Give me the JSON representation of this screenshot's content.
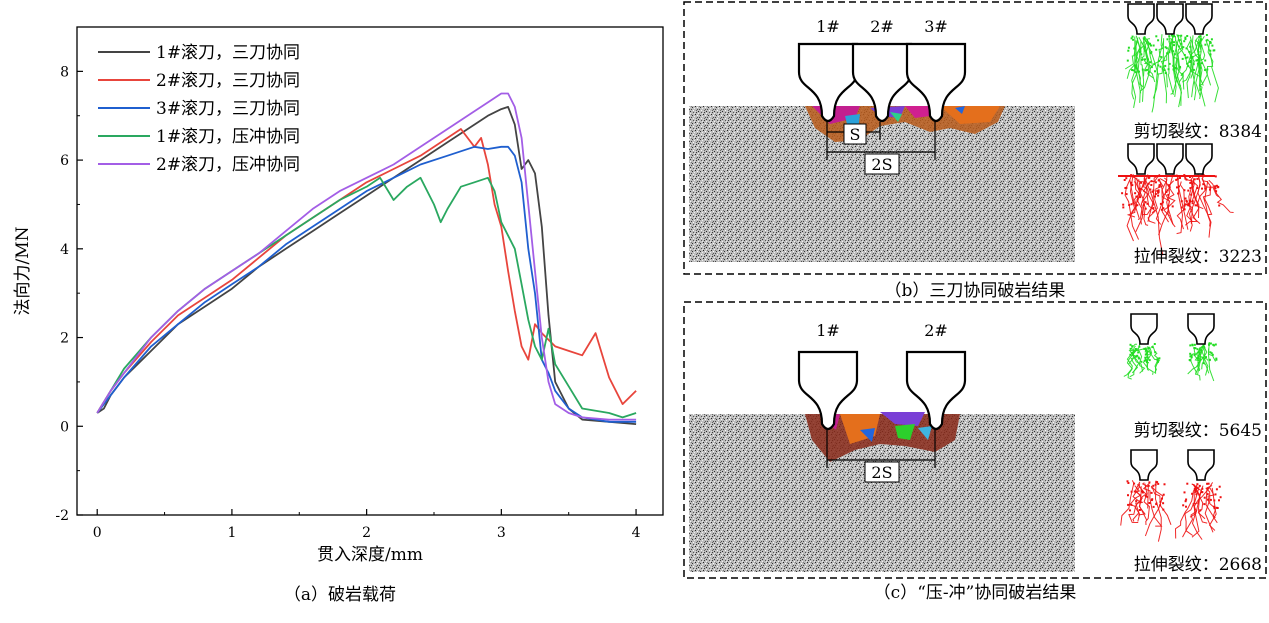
{
  "chart_data": {
    "type": "line",
    "xlabel": "贯入深度/mm",
    "ylabel": "法向力/MN",
    "xlim": [
      -0.15,
      4.2
    ],
    "ylim": [
      -2,
      9
    ],
    "xticks": [
      0,
      1,
      2,
      3,
      4
    ],
    "yticks": [
      -2,
      0,
      2,
      4,
      6,
      8
    ],
    "grid": false,
    "legend_position": "top-left",
    "caption": "（a）破岩载荷",
    "series": [
      {
        "name": "1#滚刀，三刀协同",
        "color": "#444444",
        "x": [
          0,
          0.05,
          0.1,
          0.2,
          0.3,
          0.4,
          0.5,
          0.6,
          0.8,
          1.0,
          1.2,
          1.4,
          1.6,
          1.8,
          2.0,
          2.2,
          2.4,
          2.6,
          2.8,
          2.9,
          3.0,
          3.05,
          3.1,
          3.15,
          3.2,
          3.25,
          3.3,
          3.35,
          3.4,
          3.5,
          3.6,
          3.8,
          4.0
        ],
        "y": [
          0.3,
          0.4,
          0.7,
          1.1,
          1.4,
          1.7,
          2.0,
          2.3,
          2.7,
          3.1,
          3.6,
          4.0,
          4.4,
          4.8,
          5.2,
          5.6,
          6.0,
          6.4,
          6.8,
          7.0,
          7.15,
          7.2,
          6.8,
          5.8,
          6.0,
          5.7,
          4.5,
          2.5,
          1.0,
          0.4,
          0.15,
          0.1,
          0.05
        ]
      },
      {
        "name": "2#滚刀，三刀协同",
        "color": "#e8453c",
        "x": [
          0,
          0.1,
          0.2,
          0.4,
          0.6,
          0.8,
          1.0,
          1.2,
          1.4,
          1.6,
          1.8,
          2.0,
          2.2,
          2.4,
          2.6,
          2.7,
          2.8,
          2.85,
          2.9,
          2.95,
          3.0,
          3.05,
          3.1,
          3.15,
          3.2,
          3.25,
          3.3,
          3.4,
          3.5,
          3.6,
          3.7,
          3.8,
          3.9,
          4.0
        ],
        "y": [
          0.3,
          0.8,
          1.2,
          1.9,
          2.5,
          2.9,
          3.3,
          3.8,
          4.3,
          4.7,
          5.1,
          5.5,
          5.8,
          6.1,
          6.5,
          6.7,
          6.3,
          6.5,
          5.9,
          5.0,
          4.5,
          3.5,
          2.6,
          1.8,
          1.5,
          2.3,
          2.1,
          1.8,
          1.7,
          1.6,
          2.1,
          1.1,
          0.5,
          0.8
        ]
      },
      {
        "name": "3#滚刀，三刀协同",
        "color": "#1f5fcf",
        "x": [
          0,
          0.1,
          0.2,
          0.4,
          0.6,
          0.8,
          1.0,
          1.2,
          1.4,
          1.6,
          1.8,
          2.0,
          2.2,
          2.4,
          2.6,
          2.8,
          2.9,
          3.0,
          3.05,
          3.1,
          3.15,
          3.2,
          3.25,
          3.3,
          3.35,
          3.4,
          3.5,
          3.6,
          3.8,
          4.0
        ],
        "y": [
          0.3,
          0.7,
          1.1,
          1.8,
          2.3,
          2.8,
          3.2,
          3.6,
          4.1,
          4.5,
          4.9,
          5.3,
          5.6,
          5.9,
          6.1,
          6.3,
          6.25,
          6.3,
          6.3,
          6.1,
          5.5,
          4.0,
          3.0,
          1.5,
          1.2,
          0.8,
          0.4,
          0.2,
          0.1,
          0.1
        ]
      },
      {
        "name": "1#滚刀，压冲协同",
        "color": "#2aa860",
        "x": [
          0,
          0.1,
          0.2,
          0.4,
          0.6,
          0.8,
          1.0,
          1.2,
          1.4,
          1.6,
          1.8,
          2.0,
          2.1,
          2.2,
          2.3,
          2.4,
          2.5,
          2.55,
          2.6,
          2.7,
          2.8,
          2.9,
          2.95,
          3.0,
          3.1,
          3.15,
          3.2,
          3.25,
          3.3,
          3.35,
          3.4,
          3.5,
          3.6,
          3.8,
          3.9,
          4.0
        ],
        "y": [
          0.3,
          0.8,
          1.3,
          2.0,
          2.6,
          3.1,
          3.5,
          3.9,
          4.3,
          4.7,
          5.1,
          5.4,
          5.6,
          5.1,
          5.4,
          5.6,
          5.0,
          4.6,
          4.9,
          5.4,
          5.5,
          5.6,
          5.3,
          4.6,
          4.0,
          3.2,
          2.4,
          1.8,
          1.5,
          2.2,
          1.4,
          0.9,
          0.4,
          0.3,
          0.2,
          0.3
        ]
      },
      {
        "name": "2#滚刀，压冲协同",
        "color": "#a35ee6",
        "x": [
          0,
          0.1,
          0.2,
          0.4,
          0.6,
          0.8,
          1.0,
          1.2,
          1.4,
          1.6,
          1.8,
          2.0,
          2.2,
          2.4,
          2.6,
          2.8,
          2.9,
          3.0,
          3.05,
          3.1,
          3.15,
          3.2,
          3.25,
          3.3,
          3.35,
          3.4,
          3.5,
          3.6,
          3.8,
          4.0
        ],
        "y": [
          0.3,
          0.8,
          1.2,
          2.0,
          2.6,
          3.1,
          3.5,
          3.9,
          4.4,
          4.9,
          5.3,
          5.6,
          5.9,
          6.3,
          6.7,
          7.1,
          7.3,
          7.5,
          7.5,
          7.2,
          6.5,
          5.0,
          3.5,
          2.0,
          1.0,
          0.5,
          0.3,
          0.2,
          0.15,
          0.15
        ]
      }
    ]
  },
  "panel_b": {
    "caption": "（b）三刀协同破岩结果",
    "cutters": [
      "1#",
      "2#",
      "3#"
    ],
    "spacing_labels": [
      "S",
      "2S"
    ],
    "shear_label": "剪切裂纹：8384",
    "tensile_label": "拉伸裂纹：3223"
  },
  "panel_c": {
    "caption": "（c）“压-冲”协同破岩结果",
    "cutters": [
      "1#",
      "2#"
    ],
    "spacing_label": "2S",
    "shear_label": "剪切裂纹：5645",
    "tensile_label": "拉伸裂纹：2668"
  },
  "colors": {
    "shear": "#22dd22",
    "tensile": "#ee1111",
    "rock_light": "#d8d8d8",
    "rock_dark": "#4a4a4a"
  }
}
